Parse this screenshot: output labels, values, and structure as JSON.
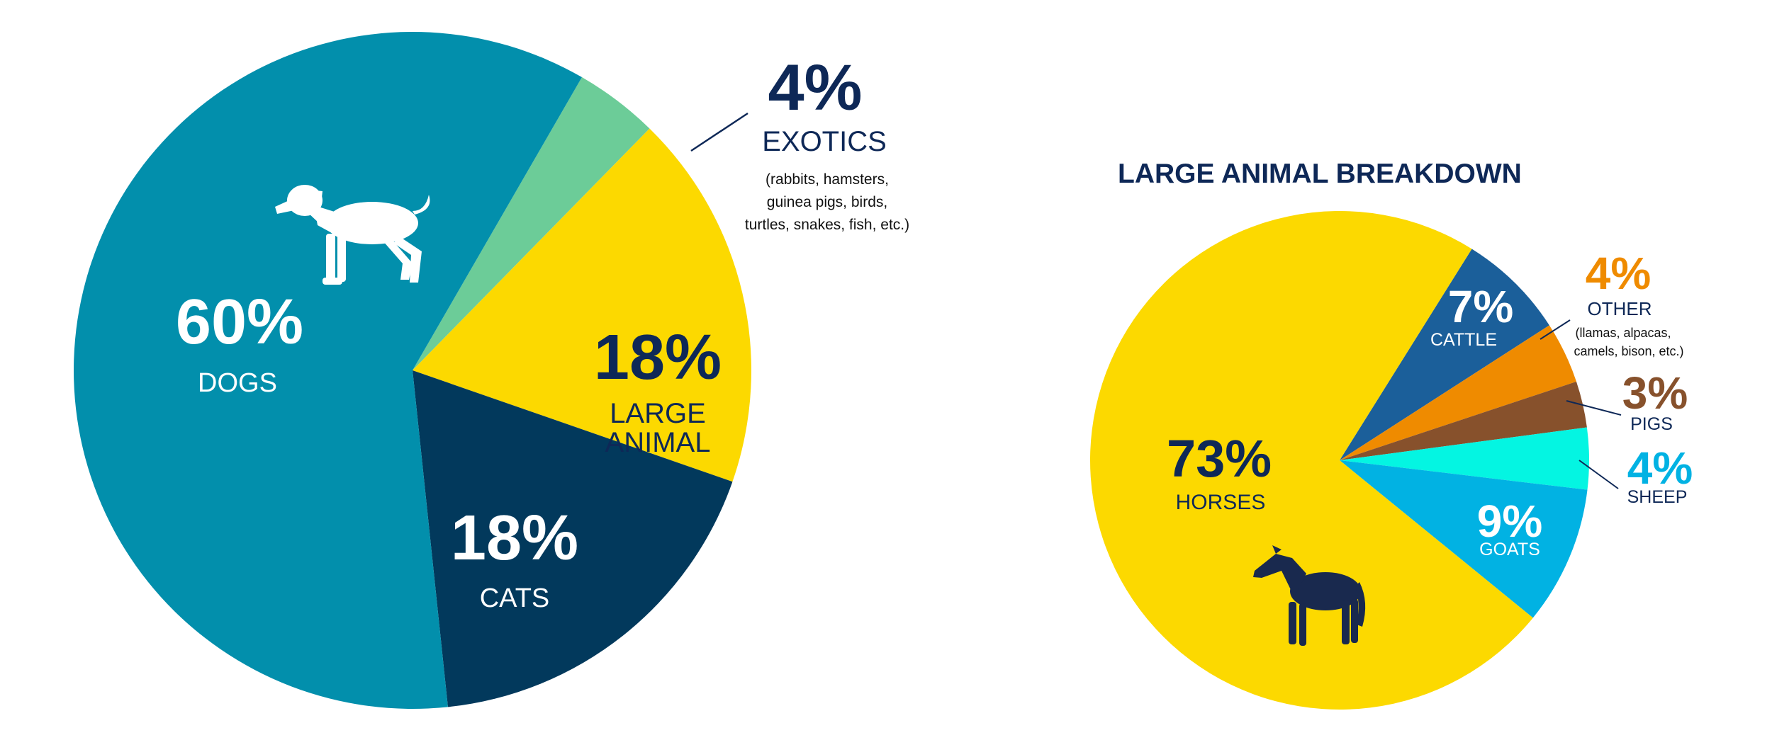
{
  "chart_data": [
    {
      "type": "pie",
      "title": "",
      "categories": [
        "DOGS",
        "CATS",
        "LARGE ANIMAL",
        "EXOTICS"
      ],
      "values": [
        60,
        18,
        18,
        4
      ],
      "percent_labels": [
        "60%",
        "18%",
        "18%",
        "4%"
      ],
      "label_words": {
        "dogs": "DOGS",
        "cats": "CATS",
        "large_line1": "LARGE",
        "large_line2": "ANIMAL",
        "exotics": "EXOTICS"
      },
      "exotics_note": [
        "(rabbits, hamsters,",
        "guinea pigs, birds,",
        "turtles, snakes, fish, etc.)"
      ],
      "colors": {
        "DOGS": "#028fac",
        "CATS": "#02395c",
        "LARGE ANIMAL": "#fcd900",
        "EXOTICS": "#6ccc98"
      },
      "icons": [
        "dog-icon"
      ]
    },
    {
      "type": "pie",
      "title": "LARGE ANIMAL BREAKDOWN",
      "categories": [
        "HORSES",
        "CATTLE",
        "OTHER",
        "PIGS",
        "SHEEP",
        "GOATS"
      ],
      "values": [
        73,
        7,
        4,
        3,
        4,
        9
      ],
      "percent_labels": [
        "73%",
        "7%",
        "4%",
        "3%",
        "4%",
        "9%"
      ],
      "other_note": [
        "(llamas, alpacas,",
        "camels, bison, etc.)"
      ],
      "colors": {
        "HORSES": "#fcd900",
        "CATTLE": "#1b5f9a",
        "OTHER": "#ef8b00",
        "PIGS": "#87512c",
        "SHEEP": "#04f5e2",
        "GOATS": "#01b2e3"
      },
      "icons": [
        "horse-icon"
      ]
    }
  ]
}
